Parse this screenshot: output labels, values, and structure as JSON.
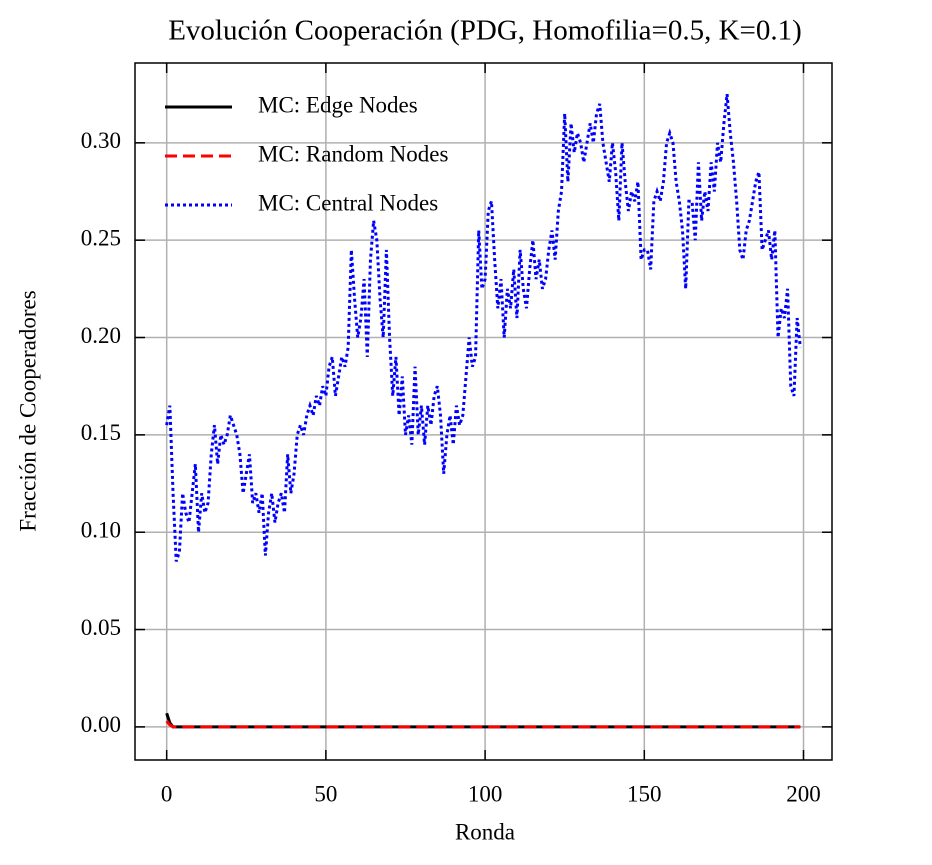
{
  "chart_data": {
    "type": "line",
    "title": "Evolución Cooperación (PDG, Homofilia=0.5, K=0.1)",
    "xlabel": "Ronda",
    "ylabel": "Fracción de Cooperadores",
    "x": [
      0,
      1,
      2,
      3,
      4,
      5,
      6,
      7,
      8,
      9,
      10,
      11,
      12,
      13,
      14,
      15,
      16,
      17,
      18,
      19,
      20,
      21,
      22,
      23,
      24,
      25,
      26,
      27,
      28,
      29,
      30,
      31,
      32,
      33,
      34,
      35,
      36,
      37,
      38,
      39,
      40,
      41,
      42,
      43,
      44,
      45,
      46,
      47,
      48,
      49,
      50,
      51,
      52,
      53,
      54,
      55,
      56,
      57,
      58,
      59,
      60,
      61,
      62,
      63,
      64,
      65,
      66,
      67,
      68,
      69,
      70,
      71,
      72,
      73,
      74,
      75,
      76,
      77,
      78,
      79,
      80,
      81,
      82,
      83,
      84,
      85,
      86,
      87,
      88,
      89,
      90,
      91,
      92,
      93,
      94,
      95,
      96,
      97,
      98,
      99,
      100,
      101,
      102,
      103,
      104,
      105,
      106,
      107,
      108,
      109,
      110,
      111,
      112,
      113,
      114,
      115,
      116,
      117,
      118,
      119,
      120,
      121,
      122,
      123,
      124,
      125,
      126,
      127,
      128,
      129,
      130,
      131,
      132,
      133,
      134,
      135,
      136,
      137,
      138,
      139,
      140,
      141,
      142,
      143,
      144,
      145,
      146,
      147,
      148,
      149,
      150,
      151,
      152,
      153,
      154,
      155,
      156,
      157,
      158,
      159,
      160,
      161,
      162,
      163,
      164,
      165,
      166,
      167,
      168,
      169,
      170,
      171,
      172,
      173,
      174,
      175,
      176,
      177,
      178,
      179,
      180,
      181,
      182,
      183,
      184,
      185,
      186,
      187,
      188,
      189,
      190,
      191,
      192,
      193,
      194,
      195,
      196,
      197,
      198,
      199
    ],
    "series": [
      {
        "name": "MC: Edge Nodes",
        "color": "#000000",
        "linestyle": "solid",
        "values": [
          0.007,
          0.002,
          0,
          0,
          0,
          0,
          0,
          0,
          0,
          0,
          0,
          0,
          0,
          0,
          0,
          0,
          0,
          0,
          0,
          0,
          0,
          0,
          0,
          0,
          0,
          0,
          0,
          0,
          0,
          0,
          0,
          0,
          0,
          0,
          0,
          0,
          0,
          0,
          0,
          0,
          0,
          0,
          0,
          0,
          0,
          0,
          0,
          0,
          0,
          0,
          0,
          0,
          0,
          0,
          0,
          0,
          0,
          0,
          0,
          0,
          0,
          0,
          0,
          0,
          0,
          0,
          0,
          0,
          0,
          0,
          0,
          0,
          0,
          0,
          0,
          0,
          0,
          0,
          0,
          0,
          0,
          0,
          0,
          0,
          0,
          0,
          0,
          0,
          0,
          0,
          0,
          0,
          0,
          0,
          0,
          0,
          0,
          0,
          0,
          0,
          0,
          0,
          0,
          0,
          0,
          0,
          0,
          0,
          0,
          0,
          0,
          0,
          0,
          0,
          0,
          0,
          0,
          0,
          0,
          0,
          0,
          0,
          0,
          0,
          0,
          0,
          0,
          0,
          0,
          0,
          0,
          0,
          0,
          0,
          0,
          0,
          0,
          0,
          0,
          0,
          0,
          0,
          0,
          0,
          0,
          0,
          0,
          0,
          0,
          0,
          0,
          0,
          0,
          0,
          0,
          0,
          0,
          0,
          0,
          0,
          0,
          0,
          0,
          0,
          0,
          0,
          0,
          0,
          0,
          0,
          0,
          0,
          0,
          0,
          0,
          0,
          0,
          0,
          0,
          0,
          0,
          0,
          0,
          0,
          0,
          0,
          0,
          0,
          0,
          0,
          0,
          0,
          0,
          0,
          0,
          0,
          0,
          0,
          0,
          0
        ]
      },
      {
        "name": "MC: Random Nodes",
        "color": "#ff0000",
        "linestyle": "dashed",
        "values": [
          0.003,
          0.001,
          0,
          0,
          0,
          0,
          0,
          0,
          0,
          0,
          0,
          0,
          0,
          0,
          0,
          0,
          0,
          0,
          0,
          0,
          0,
          0,
          0,
          0,
          0,
          0,
          0,
          0,
          0,
          0,
          0,
          0,
          0,
          0,
          0,
          0,
          0,
          0,
          0,
          0,
          0,
          0,
          0,
          0,
          0,
          0,
          0,
          0,
          0,
          0,
          0,
          0,
          0,
          0,
          0,
          0,
          0,
          0,
          0,
          0,
          0,
          0,
          0,
          0,
          0,
          0,
          0,
          0,
          0,
          0,
          0,
          0,
          0,
          0,
          0,
          0,
          0,
          0,
          0,
          0,
          0,
          0,
          0,
          0,
          0,
          0,
          0,
          0,
          0,
          0,
          0,
          0,
          0,
          0,
          0,
          0,
          0,
          0,
          0,
          0,
          0,
          0,
          0,
          0,
          0,
          0,
          0,
          0,
          0,
          0,
          0,
          0,
          0,
          0,
          0,
          0,
          0,
          0,
          0,
          0,
          0,
          0,
          0,
          0,
          0,
          0,
          0,
          0,
          0,
          0,
          0,
          0,
          0,
          0,
          0,
          0,
          0,
          0,
          0,
          0,
          0,
          0,
          0,
          0,
          0,
          0,
          0,
          0,
          0,
          0,
          0,
          0,
          0,
          0,
          0,
          0,
          0,
          0,
          0,
          0,
          0,
          0,
          0,
          0,
          0,
          0,
          0,
          0,
          0,
          0,
          0,
          0,
          0,
          0,
          0,
          0,
          0,
          0,
          0,
          0,
          0,
          0,
          0,
          0,
          0,
          0,
          0,
          0,
          0,
          0,
          0,
          0,
          0,
          0,
          0,
          0,
          0,
          0,
          0,
          0
        ]
      },
      {
        "name": "MC: Central Nodes",
        "color": "#0000ff",
        "linestyle": "dotted",
        "values": [
          0.155,
          0.165,
          0.12,
          0.085,
          0.09,
          0.12,
          0.11,
          0.105,
          0.12,
          0.135,
          0.1,
          0.12,
          0.11,
          0.115,
          0.14,
          0.155,
          0.135,
          0.15,
          0.145,
          0.15,
          0.16,
          0.155,
          0.15,
          0.14,
          0.12,
          0.13,
          0.14,
          0.115,
          0.12,
          0.11,
          0.12,
          0.088,
          0.11,
          0.12,
          0.105,
          0.115,
          0.12,
          0.11,
          0.14,
          0.12,
          0.13,
          0.15,
          0.155,
          0.15,
          0.16,
          0.165,
          0.16,
          0.17,
          0.165,
          0.175,
          0.17,
          0.185,
          0.19,
          0.17,
          0.18,
          0.19,
          0.185,
          0.195,
          0.245,
          0.22,
          0.2,
          0.21,
          0.23,
          0.19,
          0.24,
          0.26,
          0.25,
          0.22,
          0.2,
          0.245,
          0.2,
          0.17,
          0.19,
          0.16,
          0.18,
          0.15,
          0.16,
          0.145,
          0.185,
          0.15,
          0.165,
          0.145,
          0.165,
          0.155,
          0.17,
          0.175,
          0.16,
          0.13,
          0.15,
          0.16,
          0.145,
          0.165,
          0.155,
          0.16,
          0.18,
          0.2,
          0.185,
          0.19,
          0.255,
          0.225,
          0.23,
          0.265,
          0.27,
          0.24,
          0.215,
          0.23,
          0.2,
          0.225,
          0.215,
          0.235,
          0.21,
          0.245,
          0.225,
          0.215,
          0.235,
          0.25,
          0.23,
          0.24,
          0.225,
          0.23,
          0.245,
          0.255,
          0.24,
          0.265,
          0.275,
          0.315,
          0.28,
          0.31,
          0.295,
          0.305,
          0.3,
          0.29,
          0.3,
          0.31,
          0.3,
          0.315,
          0.32,
          0.3,
          0.29,
          0.28,
          0.3,
          0.285,
          0.26,
          0.3,
          0.28,
          0.265,
          0.275,
          0.27,
          0.28,
          0.24,
          0.245,
          0.245,
          0.235,
          0.27,
          0.275,
          0.27,
          0.28,
          0.3,
          0.305,
          0.3,
          0.28,
          0.27,
          0.255,
          0.225,
          0.27,
          0.27,
          0.25,
          0.29,
          0.26,
          0.275,
          0.265,
          0.29,
          0.275,
          0.3,
          0.29,
          0.31,
          0.325,
          0.305,
          0.29,
          0.27,
          0.245,
          0.24,
          0.255,
          0.26,
          0.27,
          0.28,
          0.285,
          0.245,
          0.25,
          0.255,
          0.24,
          0.255,
          0.2,
          0.215,
          0.21,
          0.225,
          0.175,
          0.17,
          0.21,
          0.195
        ]
      }
    ],
    "xlim": [
      -9.95,
      208.95
    ],
    "xticks": [
      0,
      50,
      100,
      150,
      200
    ],
    "ylim": [
      -0.017,
      0.341
    ],
    "yticks": [
      {
        "value": 0,
        "label": "0.00"
      },
      0.05,
      {
        "value": 0.1,
        "label": "0.10"
      },
      0.15,
      {
        "value": 0.2,
        "label": "0.20"
      },
      0.25,
      {
        "value": 0.3,
        "label": "0.30"
      }
    ],
    "grid": true,
    "legend": "upper left"
  }
}
